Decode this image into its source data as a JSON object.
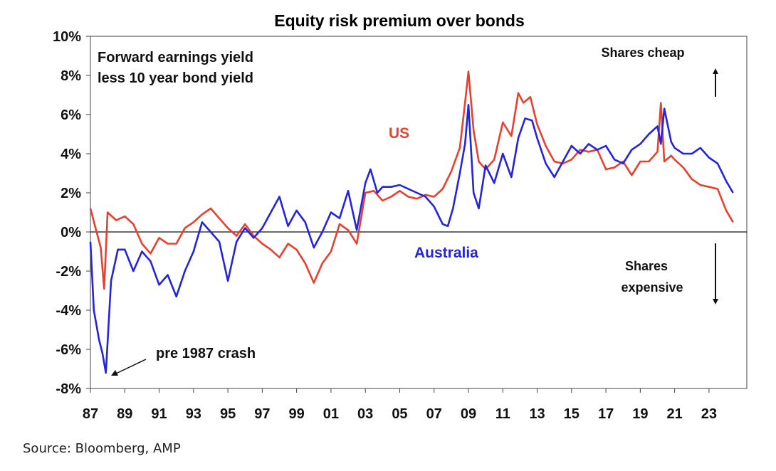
{
  "chart_data": {
    "type": "line",
    "title": "Equity risk premium over bonds",
    "xlabel": "",
    "ylabel": "",
    "ylim": [
      -8,
      10
    ],
    "xlim": [
      1987,
      2025.2
    ],
    "y_ticks": [
      "-8%",
      "-6%",
      "-4%",
      "-2%",
      "0%",
      "2%",
      "4%",
      "6%",
      "8%",
      "10%"
    ],
    "x_ticks": [
      "87",
      "89",
      "91",
      "93",
      "95",
      "97",
      "99",
      "01",
      "03",
      "05",
      "07",
      "09",
      "11",
      "13",
      "15",
      "17",
      "19",
      "21",
      "23"
    ],
    "grid": false,
    "series": [
      {
        "name": "US",
        "color": "#e8402e",
        "x": [
          1987.0,
          1987.3,
          1987.6,
          1987.8,
          1988.0,
          1988.5,
          1989.0,
          1989.5,
          1990.0,
          1990.5,
          1991.0,
          1991.5,
          1992.0,
          1992.5,
          1993.0,
          1993.5,
          1994.0,
          1994.5,
          1995.0,
          1995.5,
          1996.0,
          1996.5,
          1997.0,
          1997.5,
          1998.0,
          1998.5,
          1999.0,
          1999.5,
          2000.0,
          2000.5,
          2001.0,
          2001.5,
          2002.0,
          2002.5,
          2003.0,
          2003.5,
          2004.0,
          2004.5,
          2005.0,
          2005.5,
          2006.0,
          2006.5,
          2007.0,
          2007.5,
          2008.0,
          2008.5,
          2008.8,
          2009.0,
          2009.3,
          2009.6,
          2010.0,
          2010.5,
          2011.0,
          2011.5,
          2011.9,
          2012.2,
          2012.6,
          2013.0,
          2013.5,
          2014.0,
          2014.5,
          2015.0,
          2015.5,
          2016.0,
          2016.5,
          2017.0,
          2017.5,
          2018.0,
          2018.5,
          2019.0,
          2019.5,
          2020.0,
          2020.2,
          2020.4,
          2020.8,
          2021.0,
          2021.5,
          2022.0,
          2022.5,
          2023.0,
          2023.5,
          2024.0,
          2024.4
        ],
        "values": [
          1.2,
          0.2,
          -0.8,
          -2.9,
          1.0,
          0.6,
          0.8,
          0.4,
          -0.6,
          -1.1,
          -0.3,
          -0.6,
          -0.6,
          0.2,
          0.5,
          0.9,
          1.2,
          0.7,
          0.2,
          -0.2,
          0.4,
          -0.2,
          -0.6,
          -0.9,
          -1.3,
          -0.6,
          -0.9,
          -1.6,
          -2.6,
          -1.6,
          -1.0,
          0.4,
          0.1,
          -0.6,
          2.0,
          2.1,
          1.6,
          1.8,
          2.1,
          1.8,
          1.7,
          1.9,
          1.8,
          2.2,
          3.1,
          4.3,
          6.6,
          8.2,
          5.2,
          3.6,
          3.2,
          3.7,
          5.6,
          4.9,
          7.1,
          6.6,
          6.9,
          5.5,
          4.4,
          3.6,
          3.5,
          3.7,
          4.2,
          4.1,
          4.2,
          3.2,
          3.3,
          3.6,
          2.9,
          3.6,
          3.6,
          4.1,
          6.6,
          3.6,
          3.9,
          3.7,
          3.3,
          2.7,
          2.4,
          2.3,
          2.2,
          1.1,
          0.5
        ]
      },
      {
        "name": "Australia",
        "color": "#2323e0",
        "x": [
          1987.0,
          1987.2,
          1987.5,
          1987.7,
          1987.9,
          1988.2,
          1988.6,
          1989.0,
          1989.5,
          1990.0,
          1990.5,
          1991.0,
          1991.5,
          1992.0,
          1992.5,
          1993.0,
          1993.5,
          1994.0,
          1994.5,
          1995.0,
          1995.5,
          1996.0,
          1996.5,
          1997.0,
          1997.5,
          1998.0,
          1998.5,
          1999.0,
          1999.5,
          2000.0,
          2000.5,
          2001.0,
          2001.5,
          2002.0,
          2002.5,
          2003.0,
          2003.3,
          2003.7,
          2004.0,
          2004.5,
          2005.0,
          2005.5,
          2006.0,
          2006.5,
          2007.0,
          2007.5,
          2007.8,
          2008.1,
          2008.5,
          2008.8,
          2009.0,
          2009.3,
          2009.6,
          2010.0,
          2010.5,
          2011.0,
          2011.5,
          2011.9,
          2012.3,
          2012.7,
          2013.0,
          2013.5,
          2014.0,
          2014.5,
          2015.0,
          2015.5,
          2016.0,
          2016.5,
          2017.0,
          2017.5,
          2018.0,
          2018.5,
          2019.0,
          2019.5,
          2020.0,
          2020.2,
          2020.4,
          2020.8,
          2021.0,
          2021.5,
          2022.0,
          2022.5,
          2023.0,
          2023.5,
          2024.0,
          2024.4
        ],
        "values": [
          -0.5,
          -4.0,
          -5.5,
          -6.2,
          -7.2,
          -2.5,
          -0.9,
          -0.9,
          -2.0,
          -1.0,
          -1.5,
          -2.7,
          -2.2,
          -3.3,
          -2.0,
          -1.0,
          0.5,
          0.0,
          -0.5,
          -2.5,
          -0.5,
          0.2,
          -0.3,
          0.2,
          1.0,
          1.8,
          0.3,
          1.1,
          0.5,
          -0.8,
          0.0,
          1.0,
          0.7,
          2.1,
          0.1,
          2.5,
          3.2,
          2.0,
          2.3,
          2.3,
          2.4,
          2.2,
          2.0,
          1.8,
          1.3,
          0.4,
          0.3,
          1.2,
          3.0,
          4.5,
          6.5,
          2.0,
          1.2,
          3.4,
          2.5,
          4.0,
          2.8,
          4.8,
          5.8,
          5.7,
          4.8,
          3.5,
          2.8,
          3.6,
          4.4,
          4.0,
          4.5,
          4.2,
          4.4,
          3.7,
          3.5,
          4.2,
          4.5,
          5.0,
          5.4,
          4.5,
          6.3,
          4.6,
          4.3,
          4.0,
          4.0,
          4.3,
          3.8,
          3.5,
          2.6,
          2.0
        ]
      }
    ],
    "annotations": {
      "subtitle_line1": "Forward earnings yield",
      "subtitle_line2": "less 10 year bond yield",
      "us_label": "US",
      "australia_label": "Australia",
      "cheap_label": "Shares cheap",
      "expensive_line1": "Shares",
      "expensive_line2": "expensive",
      "crash_label": "pre 1987 crash"
    }
  },
  "source": "Source: Bloomberg, AMP"
}
